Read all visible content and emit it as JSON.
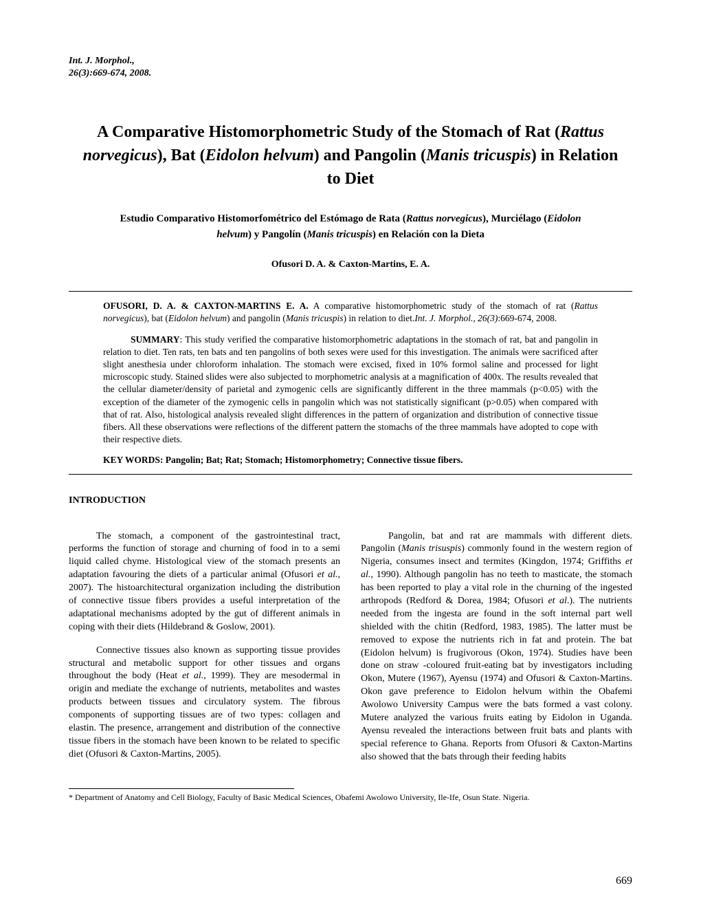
{
  "journal_header_line1": "Int. J. Morphol.,",
  "journal_header_line2": "26(3):669-674, 2008.",
  "title_html": "A  Comparative  Histomorphometric  Study  of  the  Stomach  of Rat  (<span class=\"italic\">Rattus norvegicus</span>),  Bat  (<span class=\"italic\">Eidolon helvum</span>)  and  Pangolin (<span class=\"italic\">Manis tricuspis</span>)  in  Relation  to Diet",
  "subtitle_html": "Estudio  Comparativo  Histomorfométrico  del  Estómago  de  Rata  (<span class=\"italic\">Rattus norvegicus</span>), Murciélago  (<span class=\"italic\">Eidolon helvum</span>)  y  Pangolín  (<span class=\"italic\">Manis tricuspis</span>)  en  Relación  con  la  Dieta",
  "authors": "Ofusori D. A. & Caxton-Martins, E. A.",
  "citation_html": "<span class=\"bold\">OFUSORI, D. A. & CAXTON-MARTINS E. A.</span> A comparative histomorphometric study of the stomach of rat (<span class=\"italic\">Rattus norvegicus</span>), bat (<span class=\"italic\">Eidolon helvum</span>) and pangolin (<span class=\"italic\">Manis tricuspis</span>) in relation to diet.<span class=\"italic\">Int. J. Morphol., 26(3)</span>:669-674, 2008.",
  "summary_html": "<span class=\"indent\"></span><span class=\"label\">SUMMARY</span>: This study verified the comparative histomorphometric adaptations in the stomach of rat, bat and pangolin in relation to diet. Ten rats, ten bats and ten pangolins of both sexes were used for this investigation. The animals were sacrificed after slight anesthesia under chloroform inhalation. The stomach were excised, fixed in 10% formol saline and processed for light microscopic study. Stained slides were also subjected to morphometric analysis at a magnification of 400x. The results revealed that the cellular diameter/density of parietal and zymogenic cells are significantly different in the three mammals (p<0.05) with the exception of the diameter of the zymogenic cells in pangolin which was not statistically significant (p>0.05) when compared with that of rat. Also, histological analysis revealed slight differences in the pattern of organization and distribution of connective tissue fibers. All these observations were reflections of the different pattern the stomachs of the three mammals have adopted to cope with their respective diets.",
  "keywords": "KEY WORDS: Pangolin; Bat; Rat; Stomach; Histomorphometry; Connective tissue fibers.",
  "section_heading": "INTRODUCTION",
  "col1_p1_html": "The stomach, a component of the gastrointestinal tract, performs the function of storage and churning of food in to a semi liquid called chyme. Histological view of the stomach presents an adaptation favouring the diets of a particular animal (Ofusori <span class=\"italic\">et al.</span>, 2007). The histoarchitectural organization including the distribution of connective tissue fibers provides a useful interpretation of the adaptational mechanisms adopted by the gut of different animals in coping with their diets (Hildebrand & Goslow, 2001).",
  "col1_p2_html": "Connective tissues also known as supporting tissue provides structural and metabolic support for other tissues and organs throughout the body (Heat <span class=\"italic\">et al.</span>, 1999). They are mesodermal in origin and mediate the exchange of nutrients, metabolites and wastes products between tissues and circulatory system. The fibrous components of supporting tissues are of two types: collagen and elastin. The presence, arrangement and distribution of the connective tissue fibers in the stomach have been known to be related to specific diet (Ofusori & Caxton-Martins, 2005).",
  "col2_p1_html": "Pangolin, bat and rat are mammals with different diets. Pangolin (<span class=\"italic\">Manis trisuspis</span>) commonly found in the western region of Nigeria, consumes insect and termites (Kingdon, 1974; Griffiths <span class=\"italic\">et al.</span>, 1990). Although pangolin has no teeth to masticate, the stomach has been reported to play a vital role in the churning of the ingested arthropods (Redford & Dorea, 1984; Ofusori <span class=\"italic\">et al</span>.). The nutrients needed from the ingesta are found in the soft internal part well shielded with the chitin (Redford, 1983, 1985). The latter must be removed to expose the nutrients rich in fat and protein. The bat (Eidolon helvum) is frugivorous (Okon, 1974). Studies have been done on straw -coloured fruit-eating bat by investigators including Okon, Mutere (1967), Ayensu (1974) and Ofusori & Caxton-Martins. Okon gave preference to Eidolon helvum within the Obafemi Awolowo University Campus were the bats formed a vast colony. Mutere analyzed the various fruits eating by Eidolon in Uganda. Ayensu revealed the interactions between fruit bats and plants with special reference to Ghana. Reports from Ofusori & Caxton-Martins also showed that the bats through their feeding habits",
  "footnote": "* Department of Anatomy and Cell Biology, Faculty of Basic Medical Sciences, Obafemi Awolowo University, Ile-Ife, Osun State. Nigeria.",
  "page_number": "669"
}
